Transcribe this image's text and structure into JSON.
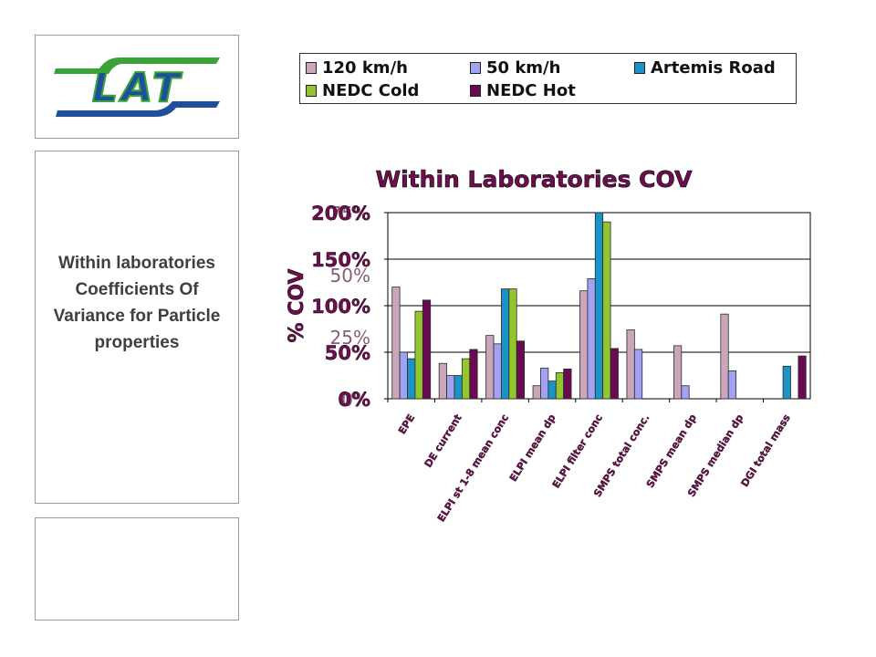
{
  "caption": "Within laboratories Coefficients Of Variance for Particle properties",
  "logo": {
    "text": "LAT",
    "colors": {
      "green": "#3aa335",
      "blue": "#1e4f9c"
    }
  },
  "colors": {
    "120 km/h": "#c9a6ba",
    "50 km/h": "#a2a2f2",
    "Artemis Road": "#1c93c5",
    "NEDC Cold": "#93c62e",
    "NEDC Hot": "#6a0a52",
    "title": "#6e0e4e"
  },
  "chart_data": {
    "type": "bar",
    "title": "Within Laboratories COV",
    "ylabel": "% COV",
    "xlabel": "",
    "ylim": [
      0,
      200
    ],
    "yticks": [
      "0%",
      "50%",
      "100%",
      "150%",
      "200%"
    ],
    "ghost_ticks": [
      "0%",
      "25%",
      "50%",
      "75%"
    ],
    "grid": true,
    "legend_position": "top",
    "categories": [
      "EPE",
      "DE current",
      "ELPI st 1-8 mean conc",
      "ELPI mean dp",
      "ELPI filter conc",
      "SMPS total conc.",
      "SMPS mean dp",
      "SMPS median dp",
      "DGI total mass"
    ],
    "series": [
      {
        "name": "120 km/h",
        "values": [
          120,
          38,
          68,
          14,
          116,
          74,
          57,
          91,
          0
        ]
      },
      {
        "name": "50 km/h",
        "values": [
          50,
          25,
          59,
          33,
          129,
          53,
          14,
          30,
          0
        ]
      },
      {
        "name": "Artemis Road",
        "values": [
          43,
          25,
          118,
          19,
          200,
          0,
          0,
          0,
          35
        ]
      },
      {
        "name": "NEDC Cold",
        "values": [
          94,
          43,
          118,
          28,
          190,
          0,
          0,
          0,
          0
        ]
      },
      {
        "name": "NEDC Hot",
        "values": [
          106,
          53,
          62,
          32,
          54,
          0,
          0,
          0,
          46
        ]
      }
    ]
  }
}
